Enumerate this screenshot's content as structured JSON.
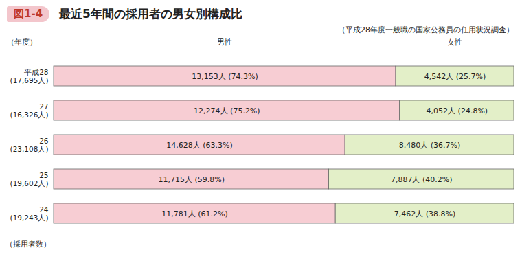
{
  "chart_data": {
    "type": "bar",
    "figure_label": "図1-4",
    "title": "最近5年間の採用者の男女別構成比",
    "subtitle": "（平成28年度一般職の国家公務員の任用状況調査）",
    "y_label": "（年度）",
    "note": "（採用者数）",
    "orientation": "horizontal",
    "stacked": true,
    "data_labels": true,
    "tick_labels": "y",
    "categories": [
      "平成28\n(17,695人)",
      "27\n(16,326人)",
      "26\n(23,108人)",
      "25\n(19,602人)",
      "24\n(19,243人)"
    ],
    "series": [
      {
        "name": "男性",
        "color": "#f7cdd3",
        "values": [
          13153,
          12274,
          14628,
          11715,
          11781
        ],
        "value_labels": [
          "13,153人 (74.3%)",
          "12,274人 (75.2%)",
          "14,628人 (63.3%)",
          "11,715人 (59.8%)",
          "11,781人 (61.2%)"
        ]
      },
      {
        "name": "女性",
        "color": "#e3efc8",
        "values": [
          4542,
          4052,
          8480,
          7887,
          7462
        ],
        "value_labels": [
          "4,542人 (25.7%)",
          "4,052人 (24.8%)",
          "8,480人 (36.7%)",
          "7,887人 (40.2%)",
          "7,462人 (38.8%)"
        ]
      }
    ]
  }
}
